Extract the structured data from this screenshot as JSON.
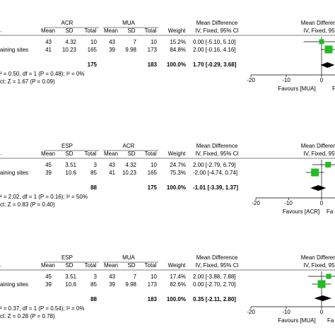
{
  "colors": {
    "marker": "#22bb22",
    "diamond": "#000000",
    "rule": "#000000"
  },
  "panels": [
    {
      "group1": "ACR",
      "group2": "MUA",
      "col_headers": [
        "Mean",
        "SD",
        "Total",
        "Mean",
        "SD",
        "Total",
        "Weight"
      ],
      "effect_header_1": "Mean Difference",
      "effect_header_2": "IV, Fixed, 95% CI",
      "plot_header_1": "Mean Difference",
      "plot_header_2": "IV, Fixed, 95%",
      "rows": [
        {
          "study": "",
          "g1_mean": "43",
          "g1_sd": "4.32",
          "g1_total": "10",
          "g2_mean": "43",
          "g2_sd": "7",
          "g2_total": "10",
          "weight": "15.2%",
          "ci": "0.00 [-5.10, 5.10]"
        },
        {
          "study": "aining sites",
          "g1_mean": "41",
          "g1_sd": "10.23",
          "g1_total": "165",
          "g2_mean": "39",
          "g2_sd": "9.98",
          "g2_total": "173",
          "weight": "84.8%",
          "ci": "2.00 [-0.16, 4.16]"
        }
      ],
      "total_g1": "175",
      "total_g2": "183",
      "total_weight": "100.0%",
      "total_ci": "1.70 [-0.29, 3.68]",
      "heterogeneity": "² = 0.50, df = 1 (P = 0.48); I² = 0%",
      "overall_effect": "ct: Z = 1.67 (P = 0.09)",
      "axis_ticks": [
        "-20",
        "-10",
        "0"
      ],
      "favours_left": "Favours [MUA]",
      "favours_right": "F"
    },
    {
      "group1": "ESP",
      "group2": "ACR",
      "col_headers": [
        "Mean",
        "SD",
        "Total",
        "Mean",
        "SD",
        "Total",
        "Weight"
      ],
      "effect_header_1": "Mean Difference",
      "effect_header_2": "IV, Fixed, 95% CI",
      "plot_header_1": "Mean Difference",
      "plot_header_2": "IV, Fixed, 95%",
      "rows": [
        {
          "study": "",
          "g1_mean": "45",
          "g1_sd": "3.51",
          "g1_total": "3",
          "g2_mean": "43",
          "g2_sd": "4.32",
          "g2_total": "10",
          "weight": "24.7%",
          "ci": "2.00 [-2.79, 6.79]"
        },
        {
          "study": "aining sites",
          "g1_mean": "39",
          "g1_sd": "10.6",
          "g1_total": "85",
          "g2_mean": "41",
          "g2_sd": "10.23",
          "g2_total": "165",
          "weight": "75.3%",
          "ci": "-2.00 [-4.74, 0.74]"
        }
      ],
      "total_g1": "88",
      "total_g2": "175",
      "total_weight": "100.0%",
      "total_ci": "-1.01 [-3.39, 1.37]",
      "heterogeneity": "² = 2.02, df = 1 (P = 0.16); I² = 50%",
      "overall_effect": "ct: Z = 0.83 (P = 0.40)",
      "axis_ticks": [
        "-20",
        "-10",
        "0"
      ],
      "favours_left": "Favours [ACR]",
      "favours_right": "Fa"
    },
    {
      "group1": "ESP",
      "group2": "MUA",
      "col_headers": [
        "Mean",
        "SD",
        "Total",
        "Mean",
        "SD",
        "Total",
        "Weight"
      ],
      "effect_header_1": "Mean Difference",
      "effect_header_2": "IV, Fixed, 95% CI",
      "plot_header_1": "Mean Difference",
      "plot_header_2": "IV, Fixed, 95%",
      "rows": [
        {
          "study": "",
          "g1_mean": "45",
          "g1_sd": "3.51",
          "g1_total": "3",
          "g2_mean": "43",
          "g2_sd": "7",
          "g2_total": "10",
          "weight": "17.4%",
          "ci": "2.00 [-3.88, 7.88]"
        },
        {
          "study": "aining sites",
          "g1_mean": "39",
          "g1_sd": "10.6",
          "g1_total": "85",
          "g2_mean": "39",
          "g2_sd": "9.98",
          "g2_total": "173",
          "weight": "82.6%",
          "ci": "0.00 [-2.70, 2.70]"
        }
      ],
      "total_g1": "88",
      "total_g2": "183",
      "total_weight": "100.0%",
      "total_ci": "0.35 [-2.11, 2.80]",
      "heterogeneity": "² = 0.37, df = 1 (P = 0.54); I² = 0%",
      "overall_effect": "ct: Z = 0.28 (P = 0.78)",
      "axis_ticks": [
        "-20",
        "-10",
        "0"
      ],
      "favours_left": "Favours [MUA]",
      "favours_right": "Fa"
    }
  ],
  "chart_data": [
    {
      "type": "forest",
      "axis_ticks": [
        -20,
        -10,
        0
      ],
      "studies": [
        {
          "label": "",
          "md": 0.0,
          "lo": -5.1,
          "hi": 5.1,
          "weight": 15.2
        },
        {
          "label": "aining sites",
          "md": 2.0,
          "lo": -0.16,
          "hi": 4.16,
          "weight": 84.8
        }
      ],
      "pooled": {
        "md": 1.7,
        "lo": -0.29,
        "hi": 3.68
      }
    },
    {
      "type": "forest",
      "axis_ticks": [
        -20,
        -10,
        0
      ],
      "studies": [
        {
          "label": "",
          "md": 2.0,
          "lo": -2.79,
          "hi": 6.79,
          "weight": 24.7
        },
        {
          "label": "aining sites",
          "md": -2.0,
          "lo": -4.74,
          "hi": 0.74,
          "weight": 75.3
        }
      ],
      "pooled": {
        "md": -1.01,
        "lo": -3.39,
        "hi": 1.37
      }
    },
    {
      "type": "forest",
      "axis_ticks": [
        -20,
        -10,
        0
      ],
      "studies": [
        {
          "label": "",
          "md": 2.0,
          "lo": -3.88,
          "hi": 7.88,
          "weight": 17.4
        },
        {
          "label": "aining sites",
          "md": 0.0,
          "lo": -2.7,
          "hi": 2.7,
          "weight": 82.6
        }
      ],
      "pooled": {
        "md": 0.35,
        "lo": -2.11,
        "hi": 2.8
      }
    }
  ]
}
